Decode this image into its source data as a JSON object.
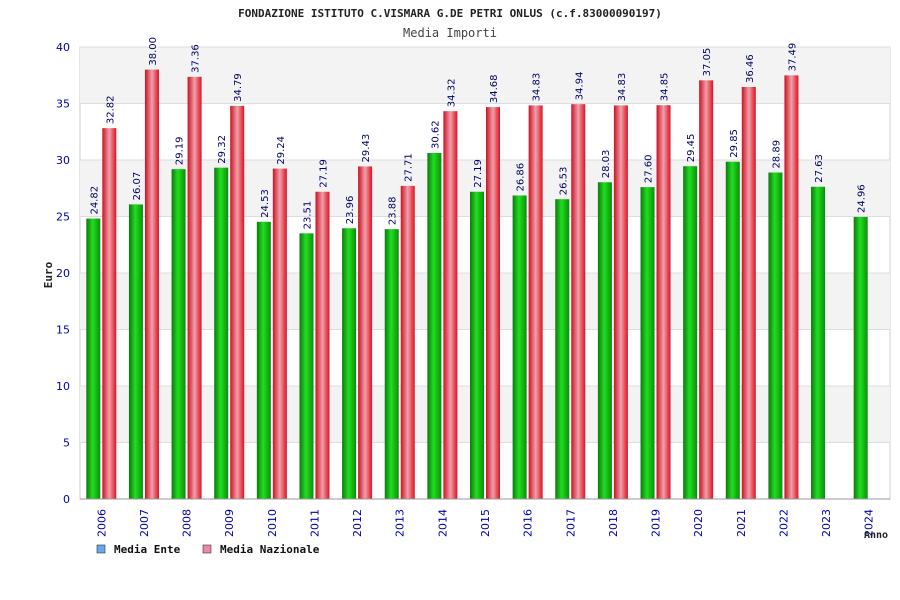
{
  "chart_data": {
    "type": "bar",
    "title": "FONDAZIONE ISTITUTO C.VISMARA G.DE PETRI ONLUS (c.f.83000090197)",
    "subtitle": "Media Importi",
    "xlabel": "Anno",
    "ylabel": "Euro",
    "ylim": [
      0,
      40
    ],
    "yticks": [
      "0",
      "5",
      "10",
      "15",
      "20",
      "25",
      "30",
      "35",
      "40"
    ],
    "categories": [
      "2006",
      "2007",
      "2008",
      "2009",
      "2010",
      "2011",
      "2012",
      "2013",
      "2014",
      "2015",
      "2016",
      "2017",
      "2018",
      "2019",
      "2020",
      "2021",
      "2022",
      "2023",
      "2024"
    ],
    "series": [
      {
        "name": "Media Ente",
        "values": [
          24.82,
          26.07,
          29.19,
          29.32,
          24.53,
          23.51,
          23.96,
          23.88,
          30.62,
          27.19,
          26.86,
          26.53,
          28.03,
          27.6,
          29.45,
          29.85,
          28.89,
          27.63,
          24.96
        ],
        "labels": [
          "24.82",
          "26.07",
          "29.19",
          "29.32",
          "24.53",
          "23.51",
          "23.96",
          "23.88",
          "30.62",
          "27.19",
          "26.86",
          "26.53",
          "28.03",
          "27.60",
          "29.45",
          "29.85",
          "28.89",
          "27.63",
          "24.96"
        ]
      },
      {
        "name": "Media Nazionale",
        "values": [
          32.82,
          38.0,
          37.36,
          34.79,
          29.24,
          27.19,
          29.43,
          27.71,
          34.32,
          34.68,
          34.83,
          34.94,
          34.83,
          34.85,
          37.05,
          36.46,
          37.49,
          null,
          null
        ],
        "labels": [
          "32.82",
          "38.00",
          "37.36",
          "34.79",
          "29.24",
          "27.19",
          "29.43",
          "27.71",
          "34.32",
          "34.68",
          "34.83",
          "34.94",
          "34.83",
          "34.85",
          "37.05",
          "36.46",
          "37.49",
          "",
          ""
        ]
      }
    ],
    "grid": true,
    "legend_position": "bottom-left",
    "colors": {
      "ente": "#11aa11",
      "nazionale": "#ee2233",
      "legend_ente": "#66aaee",
      "legend_nazionale": "#ee88aa",
      "axis_text": "#0000aa",
      "band": "#f3f3f3"
    }
  }
}
